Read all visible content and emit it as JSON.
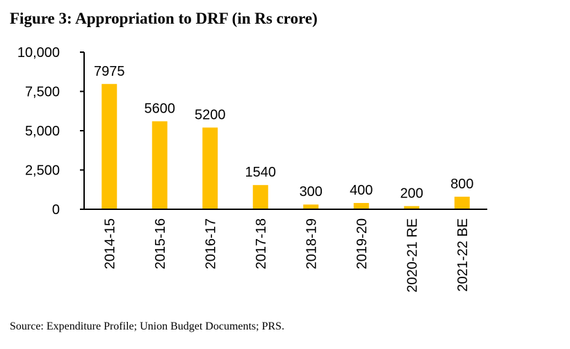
{
  "figure": {
    "title": "Figure 3: Appropriation to DRF (in Rs crore)",
    "source": "Source: Expenditure Profile; Union Budget Documents; PRS."
  },
  "chart_data": {
    "type": "bar",
    "title": "Figure 3: Appropriation to DRF (in Rs crore)",
    "xlabel": "",
    "ylabel": "",
    "categories": [
      "2014-15",
      "2015-16",
      "2016-17",
      "2017-18",
      "2018-19",
      "2019-20",
      "2020-21 RE",
      "2021-22 BE"
    ],
    "values": [
      7975,
      5600,
      5200,
      1540,
      300,
      400,
      200,
      800
    ],
    "data_labels": [
      "7975",
      "5600",
      "5200",
      "1540",
      "300",
      "400",
      "200",
      "800"
    ],
    "ylim": [
      0,
      10000
    ],
    "yticks": [
      0,
      2500,
      5000,
      7500,
      10000
    ],
    "ytick_labels": [
      "0",
      "2,500",
      "5,000",
      "7,500",
      "10,000"
    ],
    "grid": false,
    "legend": "none",
    "bar_color": "#FFC000",
    "x_label_rotation": "vertical"
  }
}
